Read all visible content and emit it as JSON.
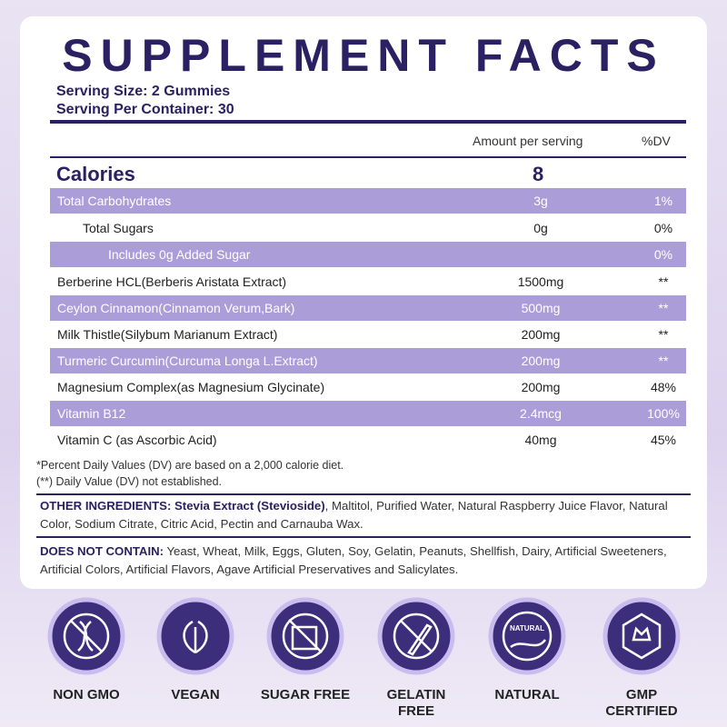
{
  "header": {
    "title": "SUPPLEMENT FACTS",
    "serving_size": "Serving Size: 2 Gummies",
    "servings_per_container": "Serving Per Container: 30"
  },
  "table": {
    "columns": [
      "Amount per serving",
      "%DV"
    ],
    "calories": {
      "label": "Calories",
      "amount": "8"
    },
    "rows": [
      {
        "name": "Total Carbohydrates",
        "amount": "3g",
        "dv": "1%",
        "indent": 0
      },
      {
        "name": "Total Sugars",
        "amount": "0g",
        "dv": "0%",
        "indent": 1
      },
      {
        "name": "Includes 0g Added Sugar",
        "amount": null,
        "dv": "0%",
        "indent": 2
      },
      {
        "name": "Berberine HCL(Berberis Aristata Extract)",
        "amount": "1500mg",
        "dv": "**",
        "indent": 0
      },
      {
        "name": "Ceylon Cinnamon(Cinnamon Verum,Bark)",
        "amount": "500mg",
        "dv": "**",
        "indent": 0
      },
      {
        "name": "Milk Thistle(Silybum Marianum Extract)",
        "amount": "200mg",
        "dv": "**",
        "indent": 0
      },
      {
        "name": "Turmeric Curcumin(Curcuma Longa L.Extract)",
        "amount": "200mg",
        "dv": "**",
        "indent": 0
      },
      {
        "name": "Magnesium Complex(as Magnesium Glycinate)",
        "amount": "200mg",
        "dv": "48%",
        "indent": 0
      },
      {
        "name": "Vitamin B12",
        "amount": "2.4mcg",
        "dv": "100%",
        "indent": 0
      },
      {
        "name": "Vitamin C (as Ascorbic Acid)",
        "amount": "40mg",
        "dv": "45%",
        "indent": 0
      }
    ]
  },
  "footnotes": [
    "*Percent Daily Values (DV) are based on a 2,000 calorie diet.",
    "(**) Daily Value (DV) not established."
  ],
  "other_ingredients": {
    "label": "OTHER INGREDIENTS:",
    "highlight": "Stevia Extract (Stevioside)",
    "text": ", Maltitol, Purified Water, Natural Raspberry Juice Flavor, Natural Color, Sodium Citrate, Citric Acid, Pectin and Carnauba Wax."
  },
  "does_not_contain": {
    "label": "DOES NOT CONTAIN:",
    "text": " Yeast, Wheat, Milk, Eggs, Gluten, Soy, Gelatin, Peanuts, Shellfish, Dairy, Artificial Sweeteners, Artificial Colors, Artificial Flavors, Agave Artificial Preservatives and Salicylates."
  },
  "badges": [
    {
      "lines": [
        "NON GMO"
      ]
    },
    {
      "lines": [
        "VEGAN"
      ]
    },
    {
      "lines": [
        "SUGAR FREE"
      ]
    },
    {
      "lines": [
        "GELATIN",
        "FREE"
      ]
    },
    {
      "lines": [
        "NATURAL"
      ],
      "icon_text": "NATURAL"
    },
    {
      "lines": [
        "GMP",
        "CERTIFIED"
      ]
    }
  ]
}
